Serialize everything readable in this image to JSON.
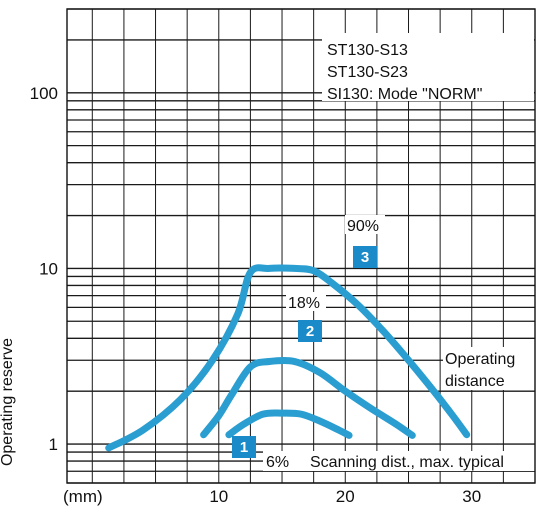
{
  "chart_data": {
    "type": "line",
    "xlabel": "(mm)",
    "ylabel": "Operating reserve",
    "y_scale": "log",
    "xlim": [
      -2,
      35
    ],
    "ylim": [
      0.6,
      300
    ],
    "x_ticks": [
      10,
      20,
      30
    ],
    "y_ticks": [
      {
        "value": 1,
        "label": "1"
      },
      {
        "value": 10,
        "label": "10"
      },
      {
        "value": 100,
        "label": "100"
      }
    ],
    "grid": true,
    "legend_lines": [
      "ST130-S13",
      "ST130-S23",
      "SI130: Mode \"NORM\""
    ],
    "annotations": {
      "operating_distance": [
        "Operating",
        "distance"
      ],
      "scanning_distance": "Scanning dist., max. typical"
    },
    "curve_color": "#2a9dd1",
    "badge_color": "#1a8bc8",
    "series": [
      {
        "badge": "3",
        "label": "90%",
        "x": [
          1.3,
          4,
          7,
          9.5,
          11.5,
          12.5,
          14,
          16,
          17.5,
          19,
          21,
          23,
          25,
          27,
          28.5,
          29.6
        ],
        "y": [
          0.95,
          1.2,
          1.8,
          3.0,
          5.5,
          9.5,
          10.0,
          10.0,
          9.7,
          8.2,
          6.2,
          4.4,
          3.0,
          2.0,
          1.45,
          1.13
        ]
      },
      {
        "badge": "2",
        "label": "18%",
        "x": [
          8.8,
          10,
          11,
          12.5,
          14,
          16,
          18,
          20,
          22,
          24,
          25.3
        ],
        "y": [
          1.13,
          1.45,
          1.9,
          2.75,
          2.95,
          2.95,
          2.55,
          2.0,
          1.6,
          1.3,
          1.12
        ]
      },
      {
        "badge": "1",
        "label": "6%",
        "x": [
          10.8,
          12,
          13.5,
          15,
          16.5,
          18,
          19.5,
          20.3
        ],
        "y": [
          1.13,
          1.3,
          1.48,
          1.5,
          1.48,
          1.35,
          1.2,
          1.12
        ]
      }
    ]
  }
}
